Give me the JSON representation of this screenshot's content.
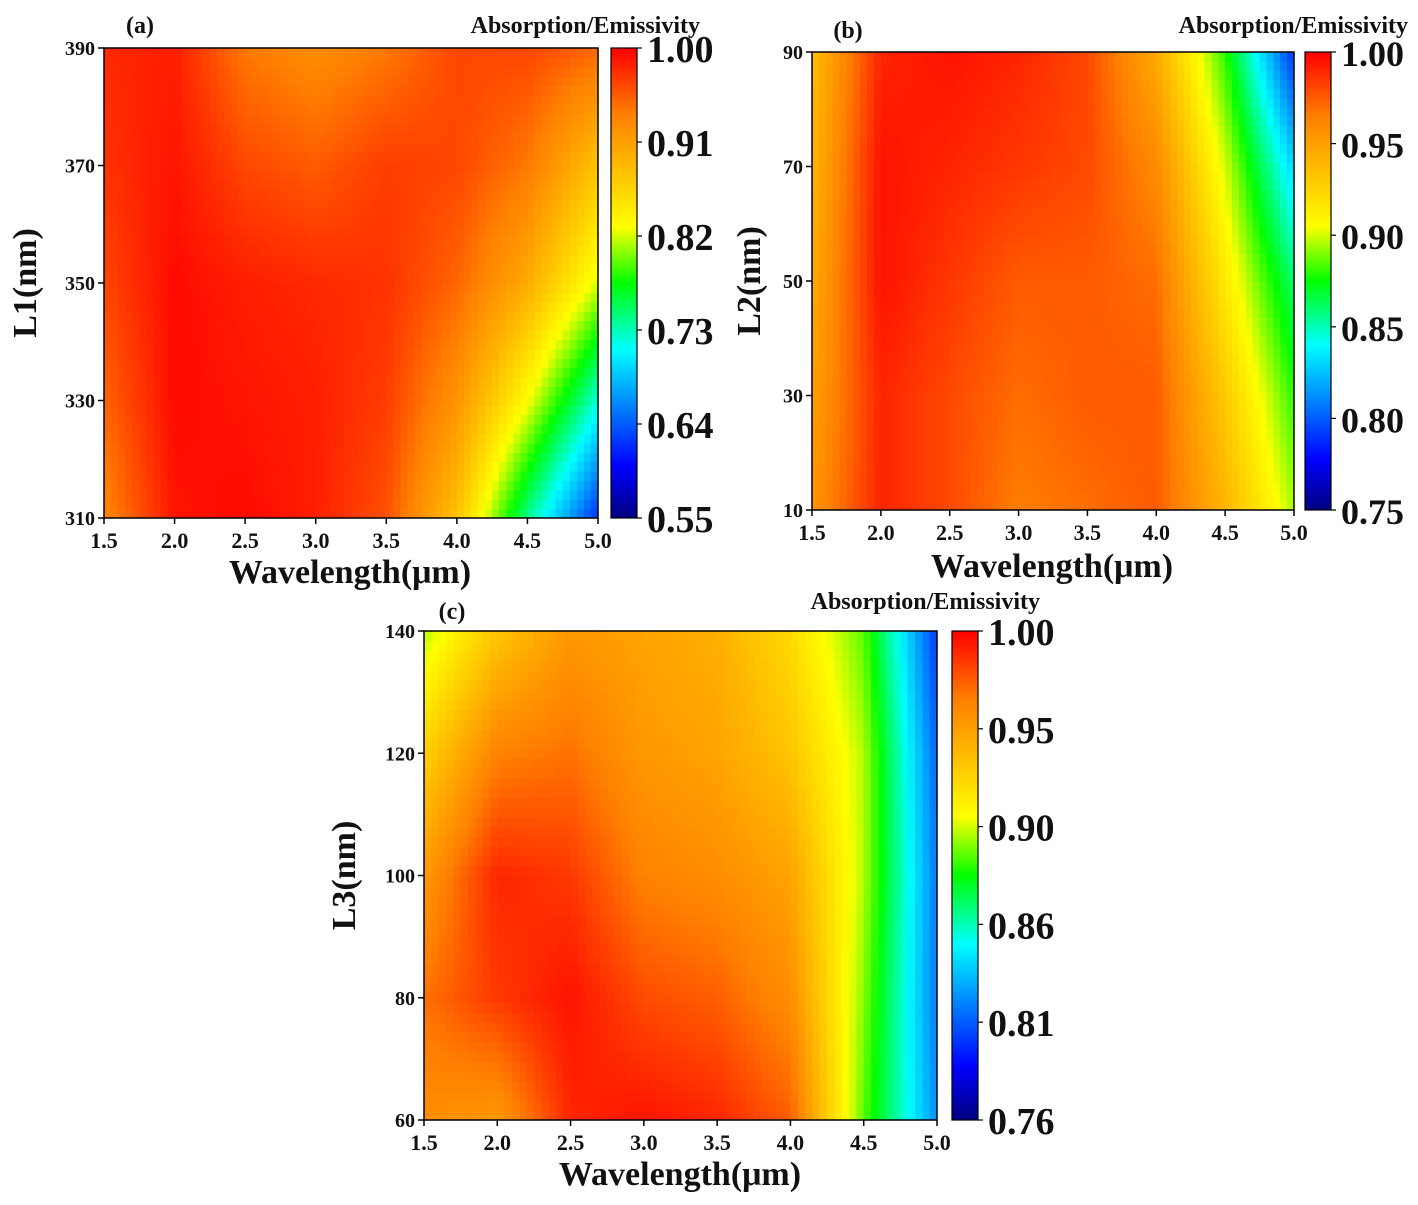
{
  "chart_data": [
    {
      "type": "heatmap",
      "panel_label": "(a)",
      "colorbar_title": "Absorption/Emissivity",
      "xlabel": "Wavelength(μm)",
      "ylabel": "L1(nm)",
      "xlim": [
        1.5,
        5.0
      ],
      "ylim": [
        310,
        390
      ],
      "xticks": [
        "1.5",
        "2.0",
        "2.5",
        "3.0",
        "3.5",
        "4.0",
        "4.5",
        "5.0"
      ],
      "yticks": [
        "310",
        "330",
        "350",
        "370",
        "390"
      ],
      "zlim": [
        0.55,
        1.0
      ],
      "colorbar_ticks": [
        "1.00",
        "0.91",
        "0.82",
        "0.73",
        "0.64",
        "0.55"
      ],
      "x": [
        1.5,
        2.0,
        2.5,
        3.0,
        3.5,
        4.0,
        4.5,
        5.0
      ],
      "y": [
        310,
        330,
        350,
        370,
        390
      ],
      "z": [
        [
          0.93,
          0.99,
          0.995,
          0.985,
          0.96,
          0.88,
          0.74,
          0.62
        ],
        [
          0.95,
          0.995,
          0.99,
          0.985,
          0.97,
          0.92,
          0.83,
          0.72
        ],
        [
          0.965,
          0.995,
          0.985,
          0.98,
          0.975,
          0.95,
          0.9,
          0.82
        ],
        [
          0.975,
          0.99,
          0.965,
          0.955,
          0.97,
          0.965,
          0.94,
          0.88
        ],
        [
          0.98,
          0.985,
          0.94,
          0.925,
          0.94,
          0.965,
          0.965,
          0.95
        ]
      ]
    },
    {
      "type": "heatmap",
      "panel_label": "(b)",
      "colorbar_title": "Absorption/Emissivity",
      "xlabel": "Wavelength(μm)",
      "ylabel": "L2(nm)",
      "xlim": [
        1.5,
        5.0
      ],
      "ylim": [
        10,
        90
      ],
      "xticks": [
        "1.5",
        "2.0",
        "2.5",
        "3.0",
        "3.5",
        "4.0",
        "4.5",
        "5.0"
      ],
      "yticks": [
        "10",
        "30",
        "50",
        "70",
        "90"
      ],
      "zlim": [
        0.75,
        1.0
      ],
      "colorbar_ticks": [
        "1.00",
        "0.95",
        "0.90",
        "0.85",
        "0.80",
        "0.75"
      ],
      "x": [
        1.5,
        2.0,
        2.5,
        3.0,
        3.5,
        4.0,
        4.5,
        5.0
      ],
      "y": [
        10,
        30,
        50,
        70,
        90
      ],
      "z": [
        [
          0.955,
          0.99,
          0.98,
          0.965,
          0.97,
          0.975,
          0.94,
          0.895
        ],
        [
          0.95,
          0.99,
          0.98,
          0.97,
          0.975,
          0.975,
          0.93,
          0.88
        ],
        [
          0.945,
          0.995,
          0.985,
          0.975,
          0.975,
          0.97,
          0.915,
          0.86
        ],
        [
          0.94,
          0.995,
          0.99,
          0.985,
          0.98,
          0.96,
          0.9,
          0.83
        ],
        [
          0.935,
          0.99,
          0.995,
          0.99,
          0.98,
          0.945,
          0.88,
          0.79
        ]
      ]
    },
    {
      "type": "heatmap",
      "panel_label": "(c)",
      "colorbar_title": "Absorption/Emissivity",
      "xlabel": "Wavelength(μm)",
      "ylabel": "L3(nm)",
      "xlim": [
        1.5,
        5.0
      ],
      "ylim": [
        60,
        140
      ],
      "xticks": [
        "1.5",
        "2.0",
        "2.5",
        "3.0",
        "3.5",
        "4.0",
        "4.5",
        "5.0"
      ],
      "yticks": [
        "60",
        "80",
        "100",
        "120",
        "140"
      ],
      "zlim": [
        0.76,
        1.0
      ],
      "colorbar_ticks": [
        "1.00",
        "0.95",
        "0.90",
        "0.86",
        "0.81",
        "0.76"
      ],
      "x": [
        1.5,
        2.0,
        2.5,
        3.0,
        3.5,
        4.0,
        4.5,
        5.0
      ],
      "y": [
        60,
        80,
        100,
        120,
        140
      ],
      "z": [
        [
          0.96,
          0.955,
          0.99,
          0.995,
          0.99,
          0.975,
          0.89,
          0.82
        ],
        [
          0.97,
          0.985,
          0.995,
          0.98,
          0.975,
          0.96,
          0.895,
          0.815
        ],
        [
          0.955,
          0.99,
          0.985,
          0.965,
          0.96,
          0.95,
          0.9,
          0.815
        ],
        [
          0.93,
          0.965,
          0.97,
          0.955,
          0.95,
          0.935,
          0.9,
          0.81
        ],
        [
          0.9,
          0.935,
          0.955,
          0.95,
          0.945,
          0.925,
          0.89,
          0.8
        ]
      ]
    }
  ]
}
